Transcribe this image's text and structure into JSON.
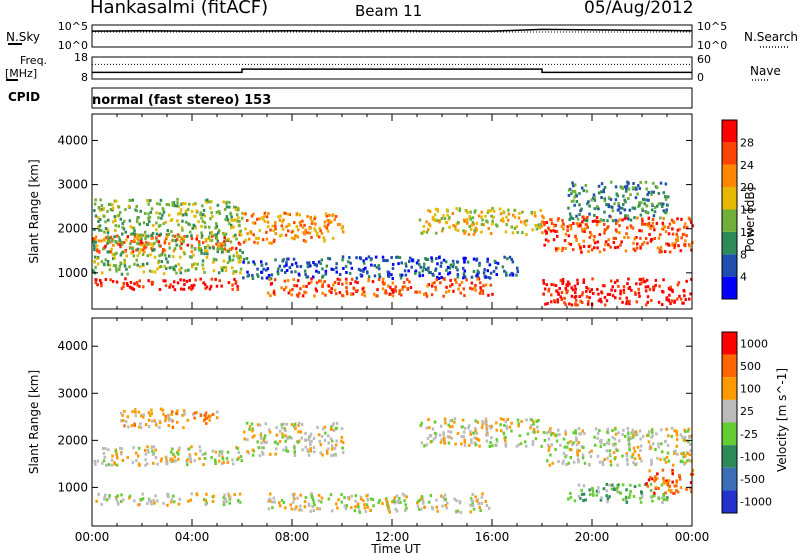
{
  "header": {
    "station": "Hankasalmi (fitACF)",
    "beam": "Beam 11",
    "date": "05/Aug/2012"
  },
  "left_labels": {
    "nsky": "N.Sky",
    "freq": "Freq.",
    "freq_unit": "[MHz]",
    "cpid": "CPID"
  },
  "right_labels": {
    "nsearch": "N.Search",
    "nave": "Nave"
  },
  "cpid_text": "normal (fast stereo) 153",
  "colors": {
    "power_scale": [
      "#0000ff",
      "#1e4fae",
      "#2e8b57",
      "#6fb03a",
      "#e6b800",
      "#ff8800",
      "#ff4400",
      "#ff0000"
    ],
    "velocity_scale": [
      "#2233cc",
      "#3a6fb5",
      "#2e8b57",
      "#66cc33",
      "#bbbbbb",
      "#ff9900",
      "#ff6600",
      "#ff0000"
    ]
  },
  "chart_data": [
    {
      "type": "line",
      "name_left": "N.Sky",
      "name_right": "N.Search",
      "left_ticks": [
        "10^5",
        "10^0"
      ],
      "right_ticks": [
        "10^5",
        "10^0"
      ],
      "x": [
        0,
        2,
        4,
        6,
        8,
        10,
        12,
        14,
        16,
        18,
        20,
        22,
        24
      ],
      "nsky_log10": [
        3.6,
        3.7,
        3.6,
        3.6,
        3.7,
        3.6,
        3.7,
        3.6,
        3.6,
        4.0,
        3.9,
        3.8,
        3.7
      ],
      "nsearch_log10": [
        3.4,
        3.4,
        3.4,
        3.4,
        3.4,
        3.4,
        3.4,
        3.4,
        3.4,
        3.4,
        3.4,
        3.4,
        3.4
      ]
    },
    {
      "type": "line",
      "name_left": "Freq. [MHz]",
      "name_right": "Nave",
      "left_ticks": [
        "18",
        "8"
      ],
      "right_ticks": [
        "60",
        "0"
      ],
      "freq_ylim": [
        8,
        18
      ],
      "nave_ylim": [
        0,
        60
      ],
      "x": [
        0,
        6,
        6,
        18,
        18,
        24
      ],
      "freq": [
        11.0,
        11.0,
        12.5,
        12.5,
        11.0,
        11.0
      ],
      "nave": [
        40,
        40,
        40,
        40,
        40,
        40
      ]
    },
    {
      "type": "heatmap",
      "quantity": "Power",
      "colorbar_label": "Power [dB]",
      "colorbar_ticks": [
        "4",
        "8",
        "12",
        "16",
        "20",
        "24",
        "28"
      ],
      "ylabel": "Slant Range [km]",
      "yticks": [
        "1000",
        "2000",
        "3000",
        "4000"
      ],
      "ylim": [
        180,
        4600
      ],
      "xlim": [
        0,
        24
      ],
      "scatter_bands": [
        {
          "t0": 0,
          "t1": 6,
          "r0": 1500,
          "r1": 1900,
          "level": 6
        },
        {
          "t0": 0,
          "t1": 6,
          "r0": 650,
          "r1": 900,
          "level": 7
        },
        {
          "t0": 0,
          "t1": 6,
          "r0": 1000,
          "r1": 2700,
          "level": 3
        },
        {
          "t0": 6,
          "t1": 10,
          "r0": 1700,
          "r1": 2400,
          "level": 5
        },
        {
          "t0": 6,
          "t1": 17,
          "r0": 900,
          "r1": 1400,
          "level": 1
        },
        {
          "t0": 7,
          "t1": 16,
          "r0": 500,
          "r1": 900,
          "level": 6
        },
        {
          "t0": 13,
          "t1": 18,
          "r0": 1900,
          "r1": 2500,
          "level": 4
        },
        {
          "t0": 18,
          "t1": 24,
          "r0": 1500,
          "r1": 2300,
          "level": 6
        },
        {
          "t0": 18,
          "t1": 24,
          "r0": 300,
          "r1": 900,
          "level": 7
        },
        {
          "t0": 19,
          "t1": 23,
          "r0": 2200,
          "r1": 3100,
          "level": 2
        }
      ]
    },
    {
      "type": "heatmap",
      "quantity": "Velocity",
      "colorbar_label": "Velocity [m s^-1]",
      "colorbar_ticks": [
        "-1000",
        "-500",
        "-100",
        "-25",
        "25",
        "100",
        "500",
        "1000"
      ],
      "ylabel": "Slant Range [km]",
      "yticks": [
        "1000",
        "2000",
        "3000",
        "4000"
      ],
      "ylim": [
        180,
        4600
      ],
      "xlim": [
        0,
        24
      ],
      "xlabel": "Time UT",
      "xticks": [
        "00:00",
        "04:00",
        "08:00",
        "12:00",
        "16:00",
        "20:00",
        "00:00"
      ],
      "scatter_bands": [
        {
          "t0": 0,
          "t1": 6,
          "r0": 1500,
          "r1": 1900,
          "level": 4
        },
        {
          "t0": 0,
          "t1": 6,
          "r0": 650,
          "r1": 900,
          "level": 4
        },
        {
          "t0": 1,
          "t1": 5,
          "r0": 2300,
          "r1": 2700,
          "level": 5
        },
        {
          "t0": 6,
          "t1": 10,
          "r0": 1700,
          "r1": 2400,
          "level": 4
        },
        {
          "t0": 7,
          "t1": 16,
          "r0": 500,
          "r1": 900,
          "level": 4
        },
        {
          "t0": 13,
          "t1": 18,
          "r0": 1900,
          "r1": 2500,
          "level": 4
        },
        {
          "t0": 18,
          "t1": 24,
          "r0": 1500,
          "r1": 2300,
          "level": 4
        },
        {
          "t0": 19,
          "t1": 23,
          "r0": 700,
          "r1": 1100,
          "level": 3
        },
        {
          "t0": 22,
          "t1": 24,
          "r0": 900,
          "r1": 1400,
          "level": 6
        }
      ]
    }
  ]
}
